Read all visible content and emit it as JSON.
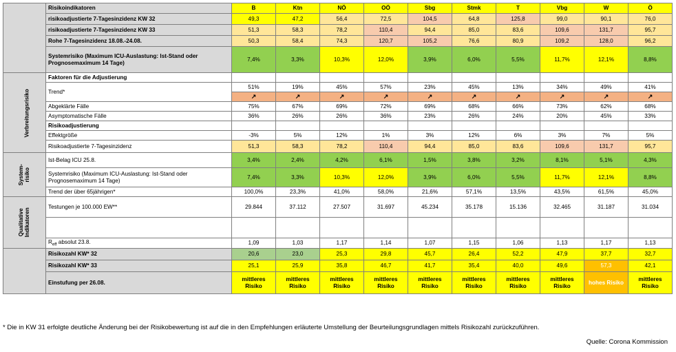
{
  "header_label": "Risikoindikatoren",
  "regions": [
    "B",
    "Ktn",
    "NÖ",
    "OÖ",
    "Sbg",
    "Stmk",
    "T",
    "Vbg",
    "W",
    "Ö"
  ],
  "top": [
    {
      "label": "risikoadjustierte 7-Tagesinzidenz KW 32",
      "values": [
        "49,3",
        "47,2",
        "56,4",
        "72,5",
        "104,5",
        "64,8",
        "125,8",
        "99,0",
        "90,1",
        "76,0"
      ]
    },
    {
      "label": "risikoadjustierte 7-Tagesinzidenz KW 33",
      "values": [
        "51,3",
        "58,3",
        "78,2",
        "110,4",
        "94,4",
        "85,0",
        "83,6",
        "109,6",
        "131,7",
        "95,7"
      ]
    },
    {
      "label": "Rohe 7-Tagesinzidenz 18.08.-24.08.",
      "values": [
        "50,3",
        "58,4",
        "74,3",
        "120,7",
        "105,2",
        "76,6",
        "80,9",
        "109,2",
        "128,0",
        "96,2"
      ]
    },
    {
      "label": "Systemrisiko (Maximum ICU-Auslastung: Ist-Stand oder Prognosemaximum 14 Tage)",
      "values": [
        "7,4%",
        "3,3%",
        "10,3%",
        "12,0%",
        "3,9%",
        "6,0%",
        "5,5%",
        "11,7%",
        "12,1%",
        "8,8%"
      ]
    }
  ],
  "verbreitung": {
    "side_label": "Verbreitungsrisiko",
    "section1": "Faktoren für die Adjustierung",
    "trend_label": "Trend*",
    "trend_values": [
      "51%",
      "19%",
      "45%",
      "57%",
      "23%",
      "45%",
      "13%",
      "34%",
      "49%",
      "41%"
    ],
    "trend_arrow": "↗",
    "abgeklaert_label": "Abgeklärte Fälle",
    "abgeklaert": [
      "75%",
      "67%",
      "69%",
      "72%",
      "69%",
      "68%",
      "66%",
      "73%",
      "62%",
      "68%"
    ],
    "asym_label": "Asymptomatische Fälle",
    "asym": [
      "36%",
      "26%",
      "26%",
      "36%",
      "23%",
      "26%",
      "24%",
      "20%",
      "45%",
      "33%"
    ],
    "section2": "Risikoadjustierung",
    "effekt_label": "Effektgröße",
    "effekt": [
      "-3%",
      "5%",
      "12%",
      "1%",
      "3%",
      "12%",
      "6%",
      "3%",
      "7%",
      "5%"
    ],
    "radj_label": "Risikoadjustierte 7-Tagesinzidenz",
    "radj": [
      "51,3",
      "58,3",
      "78,2",
      "110,4",
      "94,4",
      "85,0",
      "83,6",
      "109,6",
      "131,7",
      "95,7"
    ]
  },
  "system": {
    "side_label_1": "System-",
    "side_label_2": "risiko",
    "icu_label": "Ist-Belag ICU 25.8.",
    "icu": [
      "3,4%",
      "2,4%",
      "4,2%",
      "6,1%",
      "1,5%",
      "3,8%",
      "3,2%",
      "8,1%",
      "5,1%",
      "4,3%"
    ],
    "sysrisk_label": "Systemrisiko (Maximum ICU-Auslastung: Ist-Stand oder Prognosemaximum 14 Tage)",
    "sysrisk": [
      "7,4%",
      "3,3%",
      "10,3%",
      "12,0%",
      "3,9%",
      "6,0%",
      "5,5%",
      "11,7%",
      "12,1%",
      "8,8%"
    ],
    "trend65_label": "Trend der über 65jährigen*",
    "trend65": [
      "100,0%",
      "23,3%",
      "41,0%",
      "58,0%",
      "21,6%",
      "57,1%",
      "13,5%",
      "43,5%",
      "61,5%",
      "45,0%"
    ]
  },
  "qual": {
    "side_label_1": "Qualitative",
    "side_label_2": "Indikatoren",
    "test_label": "Testungen je 100.000 EW**",
    "tests": [
      "29.844",
      "37.112",
      "27.507",
      "31.697",
      "45.234",
      "35.178",
      "15.136",
      "32.465",
      "31.187",
      "31.034"
    ],
    "reff_label_r": "R",
    "reff_label_sub": "eff",
    "reff_label_rest": " absolut 23.8.",
    "reff": [
      "1,09",
      "1,03",
      "1,17",
      "1,14",
      "1,07",
      "1,15",
      "1,06",
      "1,13",
      "1,17",
      "1,13"
    ]
  },
  "bottom": {
    "rz32_label": "Risikozahl KW* 32",
    "rz32": [
      "20,6",
      "23,0",
      "25,3",
      "29,8",
      "45,7",
      "26,4",
      "52,2",
      "47,9",
      "37,7",
      "32,7"
    ],
    "rz33_label": "Risikozahl KW* 33",
    "rz33": [
      "25,1",
      "25,9",
      "35,8",
      "46,7",
      "41,7",
      "35,4",
      "40,0",
      "49,6",
      "57,3",
      "42,1"
    ],
    "einst_label": "Einstufung per 26.08.",
    "einst": [
      "mittleres Risiko",
      "mittleres Risiko",
      "mittleres Risiko",
      "mittleres Risiko",
      "mittleres Risiko",
      "mittleres Risiko",
      "mittleres Risiko",
      "mittleres Risiko",
      "hohes Risiko",
      "mittleres Risiko"
    ]
  },
  "footnote": "* Die in KW 31 erfolgte deutliche Änderung bei der Risikobewertung ist auf die in den Empfehlungen erläuterte Umstellung der Beurteilungsgrundlagen mittels Risikozahl zurückzuführen.",
  "source": "Quelle: Corona Kommission",
  "colors": {
    "top_rows": [
      [
        "c-y",
        "c-y",
        "c-o",
        "c-o",
        "c-p",
        "c-o",
        "c-p",
        "c-o",
        "c-o",
        "c-o"
      ],
      [
        "c-o",
        "c-o",
        "c-o",
        "c-p",
        "c-o",
        "c-o",
        "c-o",
        "c-p",
        "c-p",
        "c-o"
      ],
      [
        "c-o",
        "c-o",
        "c-o",
        "c-p",
        "c-p",
        "c-o",
        "c-o",
        "c-p",
        "c-p",
        "c-o"
      ],
      [
        "c-g",
        "c-g",
        "c-y",
        "c-y",
        "c-g",
        "c-g",
        "c-g",
        "c-y",
        "c-y",
        "c-g"
      ]
    ],
    "radj": [
      "c-o",
      "c-o",
      "c-o",
      "c-p",
      "c-o",
      "c-o",
      "c-o",
      "c-p",
      "c-p",
      "c-o"
    ],
    "icu": [
      "c-g",
      "c-g",
      "c-g",
      "c-g",
      "c-g",
      "c-g",
      "c-g",
      "c-g",
      "c-g",
      "c-g"
    ],
    "sysrisk": [
      "c-g",
      "c-g",
      "c-y",
      "c-y",
      "c-g",
      "c-g",
      "c-g",
      "c-y",
      "c-y",
      "c-g"
    ],
    "rz32": [
      "c-dg",
      "c-dg",
      "c-y",
      "c-y",
      "c-y",
      "c-y",
      "c-y",
      "c-y",
      "c-y",
      "c-y"
    ],
    "rz33": [
      "c-y",
      "c-y",
      "c-y",
      "c-y",
      "c-y",
      "c-y",
      "c-y",
      "c-y",
      "c-or",
      "c-y"
    ],
    "einst": [
      "c-hdr",
      "c-hdr",
      "c-hdr",
      "c-hdr",
      "c-hdr",
      "c-hdr",
      "c-hdr",
      "c-hdr",
      "c-or",
      "c-hdr"
    ]
  }
}
